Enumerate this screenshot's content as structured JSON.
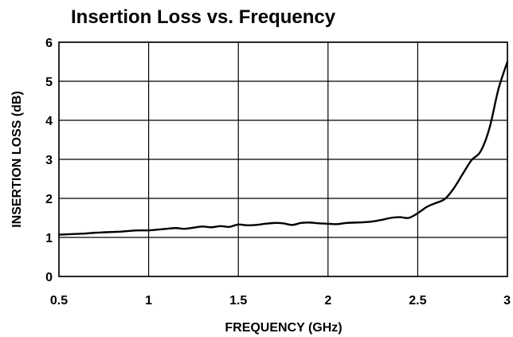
{
  "chart_data": {
    "type": "line",
    "title": "Insertion Loss vs. Frequency",
    "xlabel": "FREQUENCY (GHz)",
    "ylabel": "INSERTION LOSS (dB)",
    "xlim": [
      0.5,
      3
    ],
    "ylim": [
      0,
      6
    ],
    "x_ticks": [
      "0.5",
      "1",
      "1.5",
      "2",
      "2.5",
      "3"
    ],
    "y_ticks": [
      "0",
      "1",
      "2",
      "3",
      "4",
      "5",
      "6"
    ],
    "grid": true,
    "series": [
      {
        "color": "#000000",
        "x": [
          0.5,
          0.55,
          0.6,
          0.65,
          0.7,
          0.75,
          0.8,
          0.85,
          0.9,
          0.95,
          1.0,
          1.05,
          1.1,
          1.15,
          1.2,
          1.25,
          1.3,
          1.35,
          1.4,
          1.45,
          1.5,
          1.55,
          1.6,
          1.65,
          1.7,
          1.75,
          1.8,
          1.85,
          1.9,
          1.95,
          2.0,
          2.05,
          2.1,
          2.15,
          2.2,
          2.25,
          2.3,
          2.35,
          2.4,
          2.45,
          2.5,
          2.55,
          2.6,
          2.65,
          2.7,
          2.75,
          2.8,
          2.85,
          2.9,
          2.95,
          3.0
        ],
        "y": [
          1.07,
          1.08,
          1.09,
          1.1,
          1.12,
          1.13,
          1.14,
          1.15,
          1.17,
          1.18,
          1.18,
          1.2,
          1.22,
          1.24,
          1.22,
          1.25,
          1.28,
          1.26,
          1.29,
          1.27,
          1.33,
          1.31,
          1.32,
          1.35,
          1.37,
          1.36,
          1.32,
          1.37,
          1.38,
          1.36,
          1.35,
          1.34,
          1.37,
          1.38,
          1.39,
          1.41,
          1.45,
          1.5,
          1.52,
          1.5,
          1.62,
          1.78,
          1.88,
          1.98,
          2.25,
          2.62,
          2.98,
          3.2,
          3.8,
          4.8,
          5.5
        ]
      }
    ]
  }
}
